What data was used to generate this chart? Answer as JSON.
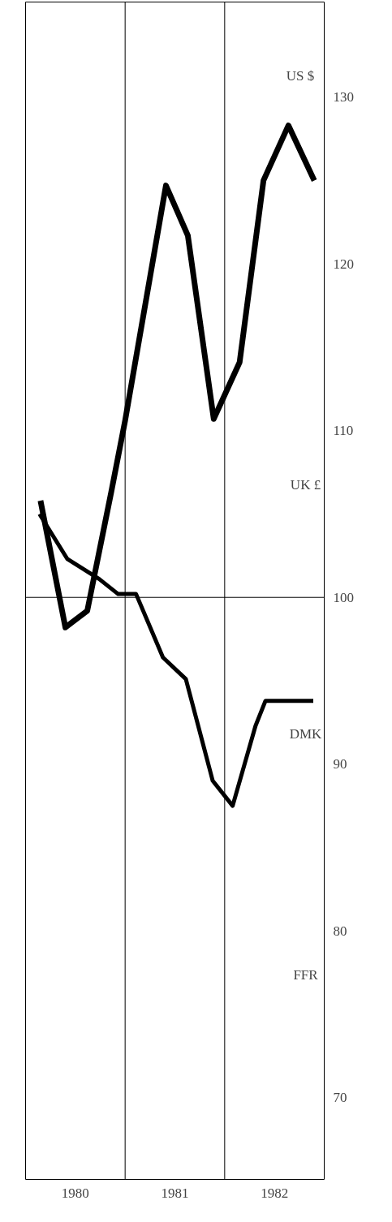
{
  "chart_data": {
    "type": "line",
    "xlim": [
      1980,
      1983
    ],
    "ylim": [
      65.1,
      135.7
    ],
    "xticks": [
      {
        "value": 1980.5,
        "label": "1980"
      },
      {
        "value": 1981.5,
        "label": "1981"
      },
      {
        "value": 1982.5,
        "label": "1982"
      }
    ],
    "yticks": [
      70,
      80,
      90,
      100,
      110,
      120,
      130
    ],
    "series": [
      {
        "name": "US $",
        "color": "#000000",
        "x": [
          1980.15,
          1980.4,
          1980.62,
          1980.86,
          1981.0,
          1981.41,
          1981.63,
          1981.89,
          1982.15,
          1982.39,
          1982.64,
          1982.9
        ],
        "values": [
          105.8,
          98.2,
          99.2,
          106.3,
          110.6,
          124.7,
          121.7,
          110.7,
          114.1,
          125.0,
          128.3,
          125.0
        ]
      },
      {
        "color": "#000000",
        "x": [
          1980.14,
          1980.42,
          1980.74,
          1980.93,
          1981.11,
          1981.38,
          1981.61,
          1981.88,
          1982.08,
          1982.31,
          1982.41,
          1982.89
        ],
        "values": [
          105.0,
          102.3,
          101.1,
          100.2,
          100.2,
          96.4,
          95.1,
          89.0,
          87.5,
          92.3,
          93.8,
          93.8
        ]
      }
    ],
    "annotations": [
      "UK £",
      "DMK",
      "FFR"
    ],
    "ref_lines": [
      {
        "axis": "x",
        "value": 1981,
        "color": "#000000"
      },
      {
        "axis": "x",
        "value": 1982,
        "color": "#000000"
      },
      {
        "axis": "y",
        "value": 100,
        "color": "#000000"
      }
    ],
    "grid": false
  }
}
